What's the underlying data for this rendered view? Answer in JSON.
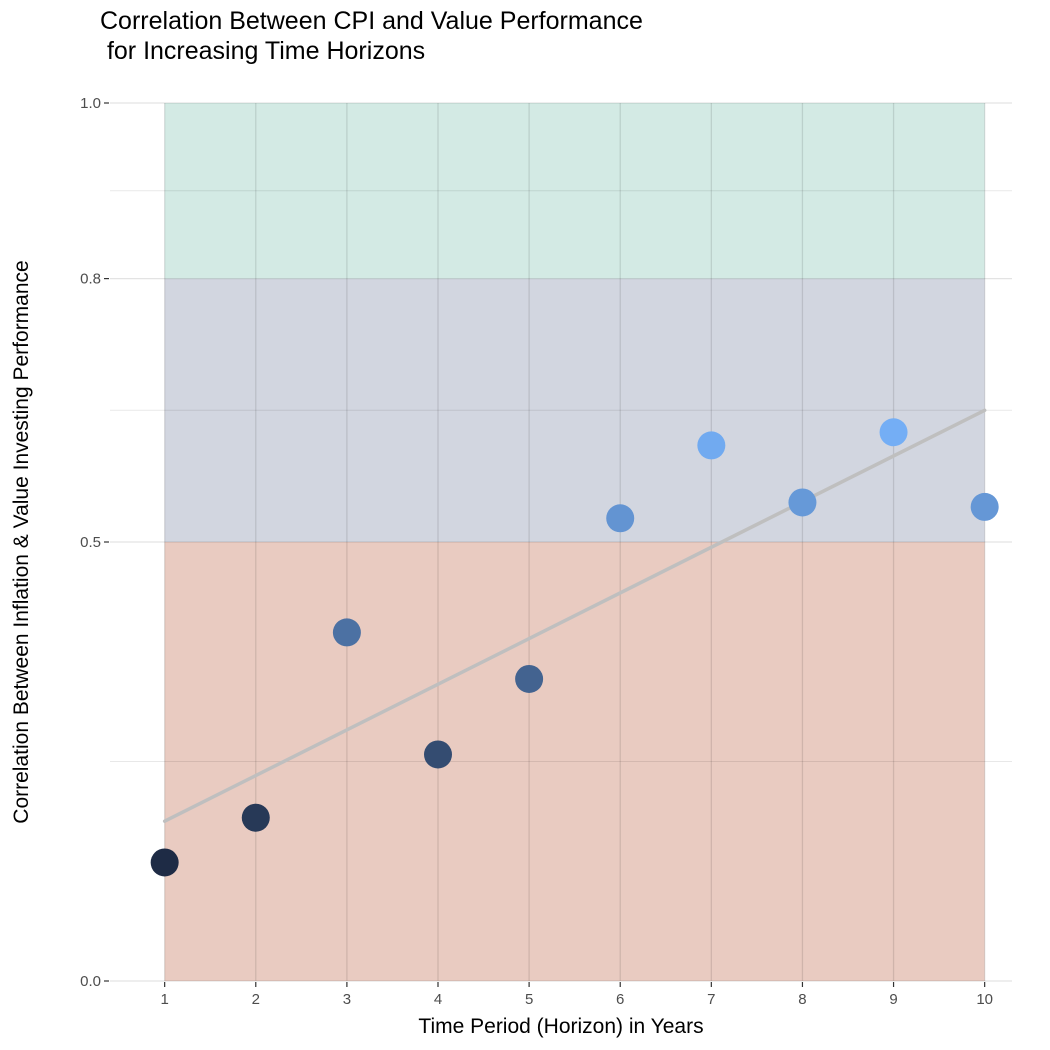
{
  "chart_data": {
    "type": "scatter",
    "title": "Correlation Between CPI and Value Performance\n for Increasing Time Horizons",
    "xlabel": "Time Period (Horizon) in Years",
    "ylabel": "Correlation Between Inflation & Value Investing Performance",
    "x": [
      1,
      2,
      3,
      4,
      5,
      6,
      7,
      8,
      9,
      10
    ],
    "y": [
      0.135,
      0.186,
      0.397,
      0.258,
      0.344,
      0.527,
      0.61,
      0.545,
      0.625,
      0.54
    ],
    "xlim": [
      0.4,
      10.3
    ],
    "ylim": [
      0,
      1.0
    ],
    "xticks": [
      "1",
      "2",
      "3",
      "4",
      "5",
      "6",
      "7",
      "8",
      "9",
      "10"
    ],
    "yticks": [
      {
        "value": 0.0,
        "label": "0.0"
      },
      {
        "value": 0.5,
        "label": "0.5"
      },
      {
        "value": 0.8,
        "label": "0.8"
      },
      {
        "value": 1.0,
        "label": "1.0"
      }
    ],
    "minor_y_gridlines": [
      0.25,
      0.65,
      0.9
    ],
    "trendline": {
      "x": [
        1,
        10
      ],
      "y": [
        0.182,
        0.65
      ],
      "color": "#bfbfbf"
    },
    "bands": [
      {
        "from": 0.0,
        "to": 0.5,
        "x_from": 1,
        "x_to": 10,
        "color": "#e9cbc1"
      },
      {
        "from": 0.5,
        "to": 0.8,
        "x_from": 1,
        "x_to": 10,
        "color": "#d2d6e0"
      },
      {
        "from": 0.8,
        "to": 1.0,
        "x_from": 1,
        "x_to": 10,
        "color": "#d3eae4"
      }
    ],
    "point_color_low": "#1e2b45",
    "point_color_high": "#74aef5",
    "grid": true,
    "legend": "none"
  }
}
